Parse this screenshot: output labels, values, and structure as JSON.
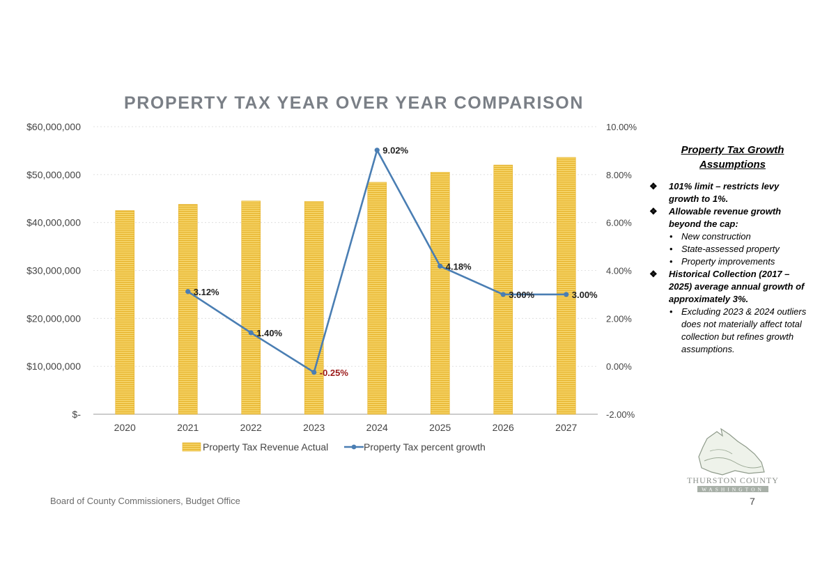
{
  "chart_data": {
    "type": "bar",
    "title": "PROPERTY TAX YEAR OVER YEAR COMPARISON",
    "categories": [
      "2020",
      "2021",
      "2022",
      "2023",
      "2024",
      "2025",
      "2026",
      "2027"
    ],
    "series": [
      {
        "name": "Property Tax Revenue Actual",
        "type": "bar",
        "axis": "left",
        "color": "#f2c230",
        "values": [
          42500000,
          43800000,
          44500000,
          44400000,
          48400000,
          50500000,
          52000000,
          53600000
        ]
      },
      {
        "name": "Property Tax percent growth",
        "type": "line",
        "axis": "right",
        "color": "#4a7eb3",
        "values": [
          null,
          3.12,
          1.4,
          -0.25,
          9.02,
          4.18,
          3.0,
          3.0
        ],
        "labels": [
          "",
          "3.12%",
          "1.40%",
          "-0.25%",
          "9.02%",
          "4.18%",
          "3.00%",
          "3.00%"
        ]
      }
    ],
    "left_axis": {
      "min": 0,
      "max": 60000000,
      "ticks": [
        0,
        10000000,
        20000000,
        30000000,
        40000000,
        50000000,
        60000000
      ],
      "tick_labels": [
        "$-",
        "$10,000,000",
        "$20,000,000",
        "$30,000,000",
        "$40,000,000",
        "$50,000,000",
        "$60,000,000"
      ]
    },
    "right_axis": {
      "min": -2,
      "max": 10,
      "ticks": [
        -2,
        0,
        2,
        4,
        6,
        8,
        10
      ],
      "tick_labels": [
        "-2.00%",
        "0.00%",
        "2.00%",
        "4.00%",
        "6.00%",
        "8.00%",
        "10.00%"
      ]
    },
    "grid": true,
    "legend": "bottom"
  },
  "assumptions": {
    "heading_line1": "Property Tax Growth",
    "heading_line2": "Assumptions",
    "items": [
      {
        "text": "101% limit – restricts levy growth to 1%.",
        "sub": []
      },
      {
        "text": "Allowable revenue growth beyond the cap:",
        "sub": [
          "New construction",
          "State-assessed property",
          "Property improvements"
        ]
      },
      {
        "text": "Historical Collection (2017 – 2025) average annual growth of approximately 3%.",
        "sub": [
          "Excluding 2023 & 2024 outliers does not materially affect total collection but refines growth assumptions."
        ]
      }
    ]
  },
  "footer": {
    "text": "Board of County Commissioners, Budget Office",
    "page": "7"
  },
  "logo": {
    "line1": "THURSTON COUNTY",
    "line2": "WASHINGTON",
    "icon": "county-map-logo"
  }
}
